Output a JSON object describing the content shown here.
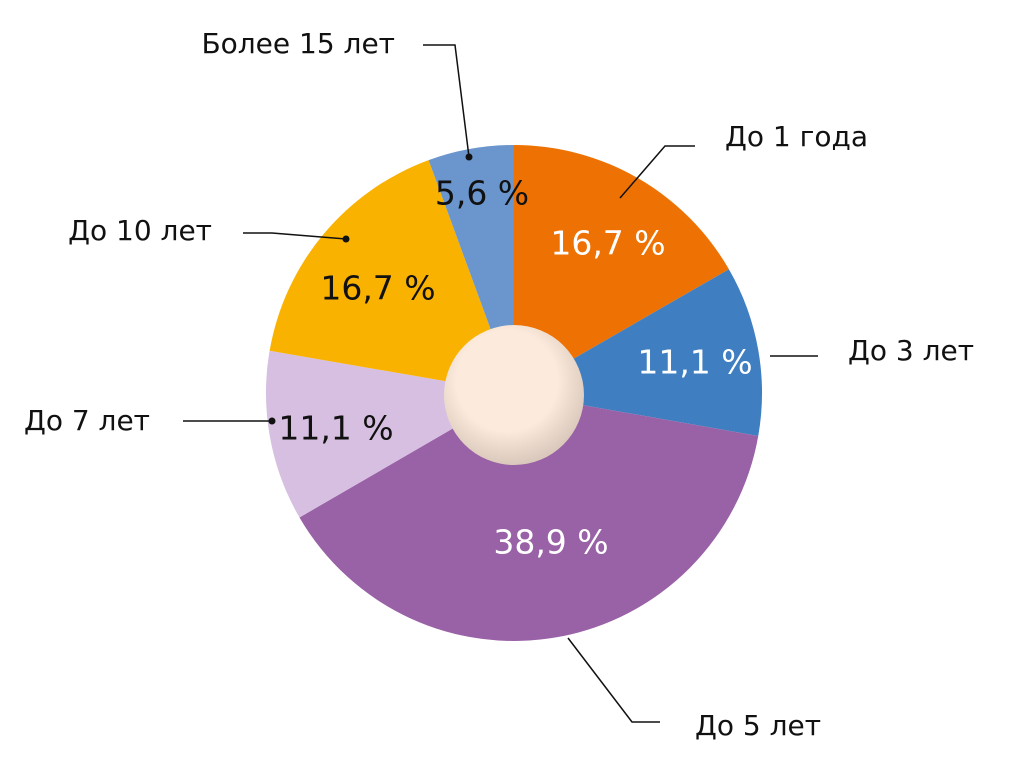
{
  "chart_data": {
    "type": "pie",
    "categories": [
      "До 1 года",
      "До 3 лет",
      "До 5 лет",
      "До 7 лет",
      "До 10 лет",
      "Более 15 лет"
    ],
    "values": [
      16.7,
      11.1,
      38.9,
      11.1,
      16.7,
      5.6
    ],
    "value_labels": [
      "16,7 %",
      "11,1 %",
      "38,9 %",
      "11,1 %",
      "16,7 %",
      "5,6 %"
    ],
    "colors": [
      "#ee7203",
      "#3f7ec1",
      "#9961a6",
      "#d6bfe0",
      "#f9b200",
      "#6a95cd"
    ]
  }
}
